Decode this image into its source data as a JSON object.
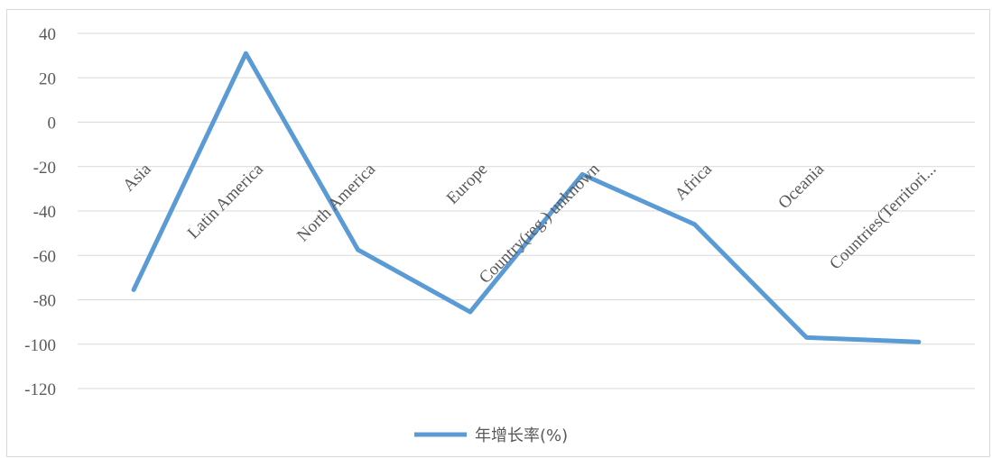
{
  "chart_data": {
    "type": "line",
    "categories": [
      "Asia",
      "Latin America",
      "North America",
      "Europe",
      "Country(reg.) unknown",
      "Africa",
      "Oceania",
      "Countries(Territori..."
    ],
    "series": [
      {
        "name": "年增长率(%)",
        "values": [
          -75.5,
          31,
          -57.5,
          -85.5,
          -23.5,
          -46,
          -97,
          -99
        ],
        "color": "#5b9bd5"
      }
    ],
    "ylim": [
      -120,
      40
    ],
    "yticks": [
      40,
      20,
      0,
      -20,
      -40,
      -60,
      -80,
      -100,
      -120
    ],
    "grid": true,
    "legend": "bottom",
    "gridline_color": "#d9d9d9",
    "text_color": "#595959"
  }
}
